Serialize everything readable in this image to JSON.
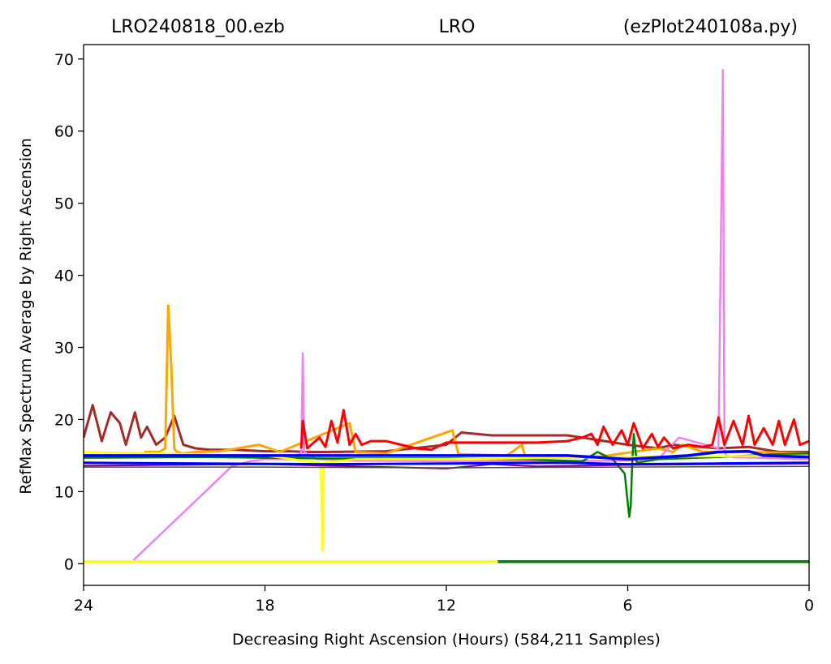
{
  "chart_data": {
    "type": "line",
    "title": {
      "left": "LRO240818_00.ezb",
      "center": "LRO",
      "right": "(ezPlot240108a.py)"
    },
    "xlabel": "Decreasing Right Ascension (Hours) (584,211 Samples)",
    "ylabel": "RefMax Spectrum Average by Right Ascension",
    "xlim": [
      24,
      0
    ],
    "ylim": [
      -3,
      72
    ],
    "xticks": [
      24,
      18,
      12,
      6,
      0
    ],
    "yticks": [
      0,
      10,
      20,
      30,
      40,
      50,
      60,
      70
    ],
    "grid": false,
    "series": [
      {
        "color": "#a52a2a",
        "width": 3,
        "x": [
          24,
          23.7,
          23.4,
          23.1,
          22.8,
          22.6,
          22.3,
          22.1,
          21.9,
          21.6,
          21.3,
          21.0,
          20.7,
          20.3,
          19.8,
          19.0,
          18.0,
          17.2,
          16.6,
          16.0
        ],
        "y": [
          17.5,
          22,
          17,
          21,
          19.5,
          16.5,
          21,
          17.5,
          19,
          16.5,
          17.5,
          20.5,
          16.5,
          16,
          15.8,
          15.8,
          15.6,
          15.6,
          15.5,
          15.5
        ]
      },
      {
        "color": "#a52a2a",
        "width": 3,
        "x": [
          16,
          14,
          12,
          11.5,
          10.5,
          9,
          8,
          7.5,
          6,
          5,
          4.5,
          3,
          2,
          1,
          0
        ],
        "y": [
          15.5,
          15.6,
          16.5,
          18.2,
          17.8,
          17.8,
          17.8,
          17.5,
          16.5,
          16,
          16.5,
          16,
          16.2,
          15.5,
          15.5
        ]
      },
      {
        "color": "#ffa500",
        "width": 3,
        "x": [
          22,
          21.5,
          21.3,
          21.2,
          21.1,
          21.0,
          20.9,
          20.7,
          20.3,
          19.5,
          18.2,
          17.5,
          15.2,
          15.0,
          14.0,
          11.8,
          11.6,
          10,
          9.5,
          9.4,
          8,
          7,
          5,
          4.5,
          4.2,
          3.5,
          2,
          0
        ],
        "y": [
          15.5,
          15.5,
          16,
          35.8,
          27.5,
          15.9,
          15.5,
          15.3,
          15.5,
          15.6,
          16.5,
          15.5,
          19.5,
          15.5,
          15.3,
          18.5,
          15.2,
          15.0,
          16.5,
          15.0,
          15.0,
          14.8,
          16,
          15.5,
          16.5,
          15.5,
          15.5,
          15.3
        ]
      },
      {
        "color": "#ee82ee",
        "width": 2.5,
        "x": [
          22.35,
          19.1,
          18.5,
          18.0,
          17.0,
          16.8,
          16.75,
          16.7,
          16.3,
          15,
          12,
          9,
          6,
          5,
          4.3,
          3.0,
          2.85,
          2.8,
          2.75,
          2.5,
          1,
          0
        ],
        "y": [
          0.5,
          13.5,
          14.2,
          14.5,
          14.5,
          15.5,
          29.2,
          15.5,
          14.5,
          14.3,
          14.2,
          14.2,
          14.3,
          14.5,
          17.5,
          16.0,
          68.5,
          16.0,
          15.0,
          14.8,
          14.6,
          14.5
        ]
      },
      {
        "color": "#ff0000",
        "width": 3,
        "x": [
          16.8,
          16.75,
          16.6,
          16.2,
          16.0,
          15.8,
          15.6,
          15.4,
          15.2,
          15.0,
          14.8,
          14.5,
          14.0,
          13.0,
          12.5,
          12.0,
          11.0,
          10.0,
          9.0,
          8.0,
          7.5,
          7.2,
          7.0,
          6.8,
          6.5,
          6.2,
          6.0,
          5.8,
          5.5,
          5.2,
          5.0,
          4.8,
          4.5,
          4.0,
          3.5,
          3.2,
          3.0,
          2.8,
          2.5,
          2.2,
          2.0,
          1.8,
          1.5,
          1.2,
          1.0,
          0.8,
          0.5,
          0.3,
          0
        ],
        "y": [
          16,
          19.8,
          16,
          17.5,
          16.2,
          19.8,
          16.8,
          21.3,
          16.5,
          18,
          16.5,
          17,
          17,
          16,
          15.8,
          16.8,
          16.8,
          16.8,
          16.8,
          17,
          17.5,
          18,
          16.5,
          19,
          16.5,
          18.5,
          16.5,
          19.5,
          16,
          18,
          16.2,
          17.5,
          16,
          16.5,
          16.2,
          16.5,
          20.3,
          16.5,
          19.8,
          16.5,
          20.5,
          16.5,
          18.8,
          16.5,
          19.8,
          16.5,
          20,
          16.5,
          17
        ]
      },
      {
        "color": "#008000",
        "width": 2.5,
        "x": [
          24,
          20,
          16,
          12,
          9.5,
          7.5,
          7.0,
          6.5,
          6.1,
          6.0,
          5.95,
          5.9,
          5.85,
          5.8,
          5.7,
          5,
          3,
          1,
          0
        ],
        "y": [
          14.7,
          14.8,
          14.6,
          14.6,
          14.5,
          14.2,
          15.5,
          14.5,
          12.5,
          8.5,
          6.5,
          8.0,
          14.0,
          18.0,
          14.0,
          14.5,
          14.8,
          15.2,
          15.3
        ]
      },
      {
        "color": "#008000",
        "width": 3.5,
        "x": [
          10.3,
          0
        ],
        "y": [
          0.3,
          0.3
        ]
      },
      {
        "color": "#ffff00",
        "width": 3.5,
        "x": [
          24,
          10.3
        ],
        "y": [
          0.3,
          0.3
        ]
      },
      {
        "color": "#ffff00",
        "width": 2.5,
        "x": [
          24,
          18,
          16.2,
          16.15,
          16.1,
          16.05,
          15,
          12,
          6,
          0
        ],
        "y": [
          15.5,
          15.0,
          14.0,
          13.2,
          1.8,
          14.0,
          14.5,
          14.5,
          14.8,
          15.0
        ]
      },
      {
        "color": "#800080",
        "width": 2,
        "x": [
          24,
          18,
          12,
          10.5,
          9,
          6,
          3,
          0
        ],
        "y": [
          13.6,
          13.8,
          13.2,
          13.8,
          13.5,
          13.7,
          13.8,
          13.9
        ]
      },
      {
        "color": "#0000ff",
        "width": 3.5,
        "x": [
          24,
          20,
          16,
          12,
          8,
          6,
          4,
          3,
          2,
          1.5,
          0
        ],
        "y": [
          15.0,
          15.0,
          15.0,
          15.0,
          15.0,
          14.5,
          15.0,
          15.5,
          15.6,
          15.0,
          14.8
        ]
      },
      {
        "color": "#0000ff",
        "width": 3,
        "x": [
          24,
          20,
          16,
          12,
          8,
          6,
          3,
          0
        ],
        "y": [
          14.0,
          13.9,
          13.8,
          13.9,
          14.0,
          13.8,
          13.9,
          14.0
        ]
      },
      {
        "color": "#4d4d4d",
        "width": 1.5,
        "x": [
          24,
          18,
          12,
          6,
          0
        ],
        "y": [
          13.4,
          13.4,
          13.3,
          13.4,
          13.5
        ]
      }
    ]
  }
}
